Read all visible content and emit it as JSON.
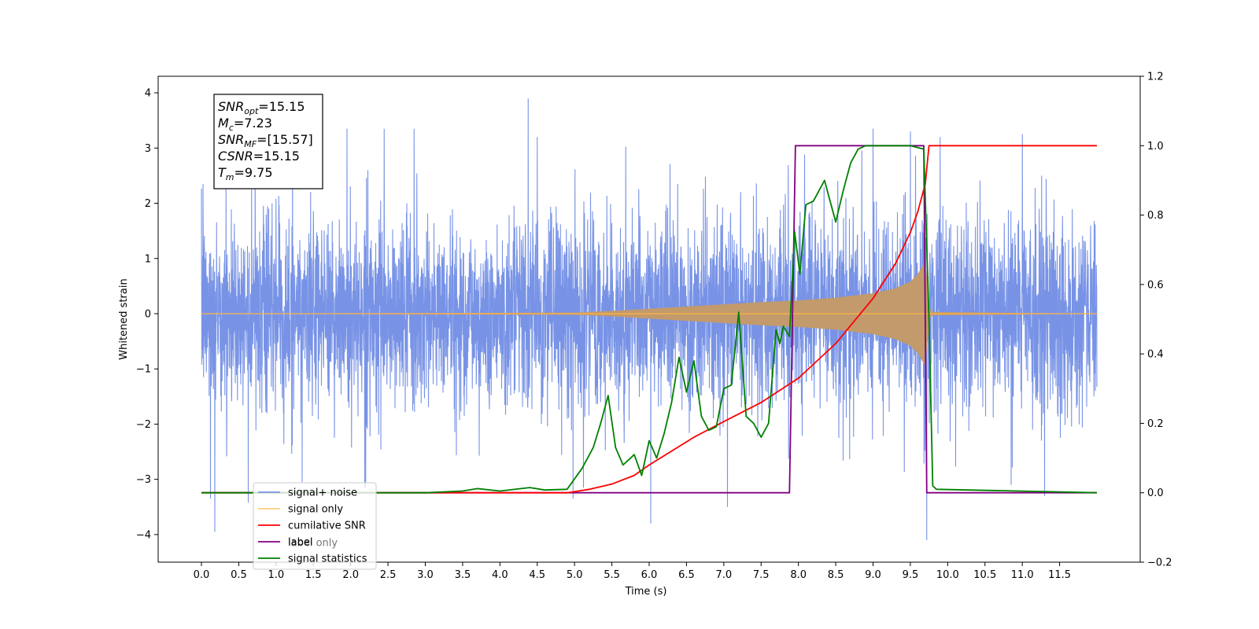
{
  "chart_data": {
    "type": "line",
    "xlabel": "Time (s)",
    "ylabel_left": "Whitened strain",
    "ylabel_right": "",
    "xticks": [
      "0.0",
      "0.5",
      "1.0",
      "1.5",
      "2.0",
      "2.5",
      "3.0",
      "3.5",
      "4.0",
      "4.5",
      "5.0",
      "5.5",
      "6.0",
      "6.5",
      "7.0",
      "7.5",
      "8.0",
      "8.5",
      "9.0",
      "9.5",
      "10.0",
      "10.5",
      "11.0",
      "11.5"
    ],
    "xlim": [
      -0.58,
      12.58
    ],
    "ylim_left": [
      -4.5,
      4.3
    ],
    "yticks_left": [
      4,
      3,
      2,
      1,
      0,
      -1,
      -2,
      -3,
      -4
    ],
    "ylim_right": [
      -0.2,
      1.2
    ],
    "yticks_right": [
      1.2,
      1.0,
      0.8,
      0.6,
      0.4,
      0.2,
      0.0,
      -0.2
    ],
    "grid": false,
    "legend_position": "lower-left",
    "annotation": {
      "lines": [
        {
          "main": "SNR",
          "sub": "opt",
          "rest": "=15.15"
        },
        {
          "main": "M",
          "sub": "c",
          "rest": "=7.23"
        },
        {
          "main": "SNR",
          "sub": "MF",
          "rest": "=[15.57]"
        },
        {
          "main": "CSNR",
          "sub": "",
          "rest": "=15.15"
        },
        {
          "main": "T",
          "sub": "m",
          "rest": "=9.75"
        }
      ]
    },
    "series": [
      {
        "name": "signal+ noise",
        "axis": "left",
        "color": "#7893e6",
        "kind": "noise",
        "x_range": [
          0.0,
          12.0
        ],
        "envelope_p95": 1.6,
        "spike_max": 2.7,
        "extreme_peaks": [
          {
            "x": 0.02,
            "y": 2.35
          },
          {
            "x": 0.12,
            "y": -3.35
          },
          {
            "x": 0.18,
            "y": -3.95
          },
          {
            "x": 0.72,
            "y": 3.05
          },
          {
            "x": 1.22,
            "y": 3.15
          },
          {
            "x": 1.35,
            "y": -3.05
          },
          {
            "x": 1.95,
            "y": 3.35
          },
          {
            "x": 2.2,
            "y": -3.15
          },
          {
            "x": 2.45,
            "y": 3.35
          },
          {
            "x": 2.85,
            "y": 3.35
          },
          {
            "x": 4.38,
            "y": 3.9
          },
          {
            "x": 4.5,
            "y": 3.2
          },
          {
            "x": 4.98,
            "y": -3.35
          },
          {
            "x": 5.12,
            "y": -3.15
          },
          {
            "x": 6.02,
            "y": -3.8
          },
          {
            "x": 7.05,
            "y": -3.5
          },
          {
            "x": 8.85,
            "y": 2.95
          },
          {
            "x": 9.0,
            "y": 3.35
          },
          {
            "x": 9.5,
            "y": 3.3
          },
          {
            "x": 9.72,
            "y": -4.1
          },
          {
            "x": 9.9,
            "y": 3.2
          },
          {
            "x": 10.85,
            "y": -3.1
          },
          {
            "x": 11.0,
            "y": 3.25
          },
          {
            "x": 11.3,
            "y": -3.3
          }
        ]
      },
      {
        "name": "signal only",
        "axis": "left",
        "color": "#ffb347",
        "fill_color": "#c29a6c",
        "kind": "chirp",
        "envelope": {
          "x": [
            0.0,
            5.0,
            5.5,
            6.0,
            6.5,
            7.0,
            7.5,
            8.0,
            8.5,
            9.0,
            9.3,
            9.5,
            9.6,
            9.7,
            9.76,
            9.8,
            12.0
          ],
          "y": [
            0.0,
            0.02,
            0.05,
            0.09,
            0.13,
            0.17,
            0.21,
            0.24,
            0.29,
            0.37,
            0.46,
            0.58,
            0.72,
            0.95,
            0.08,
            0.03,
            0.0
          ]
        }
      },
      {
        "name": "cumilative SNR",
        "axis": "right",
        "color": "#ff0000",
        "x": [
          0.0,
          4.9,
          5.2,
          5.5,
          5.8,
          6.0,
          6.3,
          6.6,
          7.0,
          7.5,
          8.0,
          8.5,
          9.0,
          9.3,
          9.5,
          9.6,
          9.7,
          9.75,
          12.0
        ],
        "y": [
          0.0,
          0.0,
          0.01,
          0.025,
          0.05,
          0.08,
          0.12,
          0.16,
          0.205,
          0.26,
          0.33,
          0.43,
          0.56,
          0.66,
          0.75,
          0.81,
          0.89,
          1.0,
          1.0
        ]
      },
      {
        "name": "label",
        "axis": "right",
        "color": "#800080",
        "x": [
          0.0,
          7.88,
          7.96,
          9.68,
          9.72,
          12.0
        ],
        "y": [
          0.0,
          0.0,
          1.0,
          1.0,
          0.0,
          0.0
        ]
      },
      {
        "name": "signal statistics",
        "axis": "right",
        "color": "#008000",
        "x": [
          0.0,
          3.0,
          3.5,
          3.7,
          4.0,
          4.4,
          4.6,
          4.9,
          5.1,
          5.25,
          5.35,
          5.45,
          5.55,
          5.65,
          5.8,
          5.9,
          6.0,
          6.1,
          6.2,
          6.3,
          6.4,
          6.5,
          6.6,
          6.7,
          6.8,
          6.9,
          7.0,
          7.1,
          7.2,
          7.3,
          7.4,
          7.5,
          7.6,
          7.7,
          7.75,
          7.8,
          7.88,
          7.95,
          8.02,
          8.1,
          8.2,
          8.35,
          8.5,
          8.6,
          8.7,
          8.8,
          8.9,
          9.05,
          9.5,
          9.68,
          9.75,
          9.8,
          9.85,
          12.0
        ],
        "y": [
          0.0,
          0.0,
          0.005,
          0.012,
          0.005,
          0.015,
          0.008,
          0.01,
          0.07,
          0.13,
          0.2,
          0.28,
          0.13,
          0.08,
          0.11,
          0.05,
          0.15,
          0.1,
          0.17,
          0.26,
          0.39,
          0.29,
          0.38,
          0.22,
          0.18,
          0.19,
          0.3,
          0.31,
          0.52,
          0.22,
          0.2,
          0.16,
          0.2,
          0.47,
          0.43,
          0.48,
          0.45,
          0.75,
          0.63,
          0.83,
          0.84,
          0.9,
          0.78,
          0.87,
          0.95,
          0.99,
          1.0,
          1.0,
          1.0,
          0.99,
          0.5,
          0.02,
          0.01,
          0.0
        ]
      }
    ],
    "legend": [
      {
        "label": "signal+ noise",
        "color": "#7893e6"
      },
      {
        "label": "signal only",
        "color": "#ffcf7a"
      },
      {
        "label": "cumilative SNR",
        "color": "#ff0000"
      },
      {
        "label": "label",
        "color": "#800080"
      },
      {
        "label": "signal statistics",
        "color": "#008000"
      }
    ],
    "ghost_legend_text": [
      "label only"
    ]
  }
}
